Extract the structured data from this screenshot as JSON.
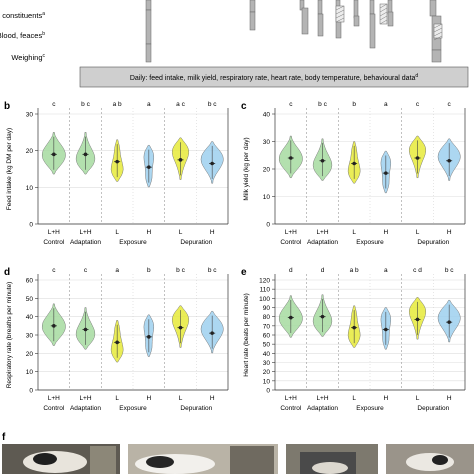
{
  "timeline": {
    "rows": [
      {
        "label": "Milk constituents",
        "sup": "a"
      },
      {
        "label": "Blood, feaces",
        "sup": "b"
      },
      {
        "label": "Weighing",
        "sup": "c"
      }
    ],
    "daily_text": "Daily: feed intake, milk yield, respiratory rate, heart rate, body temperature, behavioural data",
    "daily_sup": "d"
  },
  "groups": [
    {
      "cond": "L+H",
      "phase": "Control"
    },
    {
      "cond": "L+H",
      "phase": "Adaptation"
    },
    {
      "cond": "L",
      "phase": "Exposure"
    },
    {
      "cond": "H",
      "phase": ""
    },
    {
      "cond": "L",
      "phase": "Depuration"
    },
    {
      "cond": "H",
      "phase": ""
    }
  ],
  "violin_colors": [
    "#a6dba0",
    "#a6dba0",
    "#e6ea3a",
    "#9dd0ef",
    "#e6ea3a",
    "#9dd0ef"
  ],
  "chart_data": [
    {
      "panel": "b",
      "type": "violin",
      "ylabel": "Feed intake (kg DM per day)",
      "ylim": [
        0,
        30
      ],
      "yticks": [
        0,
        10,
        20,
        30
      ],
      "letters": [
        "c",
        "b c",
        "a b",
        "a",
        "a c",
        "b c"
      ],
      "medians": [
        19,
        19,
        17,
        15.5,
        17.5,
        16.5
      ]
    },
    {
      "panel": "c",
      "type": "violin",
      "ylabel": "Milk yield (kg per day)",
      "ylim": [
        0,
        40
      ],
      "yticks": [
        0,
        10,
        20,
        30,
        40
      ],
      "letters": [
        "c",
        "b c",
        "b",
        "a",
        "c",
        "c"
      ],
      "medians": [
        24,
        23,
        22,
        18.5,
        24,
        23
      ]
    },
    {
      "panel": "d",
      "type": "violin",
      "ylabel": "Respiratory rate (breaths per minute)",
      "ylim": [
        0,
        60
      ],
      "yticks": [
        0,
        10,
        20,
        30,
        40,
        50,
        60
      ],
      "letters": [
        "c",
        "c",
        "a",
        "b",
        "b c",
        "b c"
      ],
      "medians": [
        35,
        33,
        26,
        29,
        34,
        31
      ]
    },
    {
      "panel": "e",
      "type": "violin",
      "ylabel": "Heart rate (beats per minute)",
      "ylim": [
        0,
        120
      ],
      "yticks": [
        0,
        10,
        20,
        30,
        40,
        50,
        60,
        70,
        80,
        90,
        100,
        110,
        120
      ],
      "letters": [
        "d",
        "d",
        "a b",
        "a",
        "c d",
        "b c"
      ],
      "medians": [
        79,
        80,
        68,
        66,
        77,
        74
      ]
    }
  ],
  "photos_label": "f"
}
